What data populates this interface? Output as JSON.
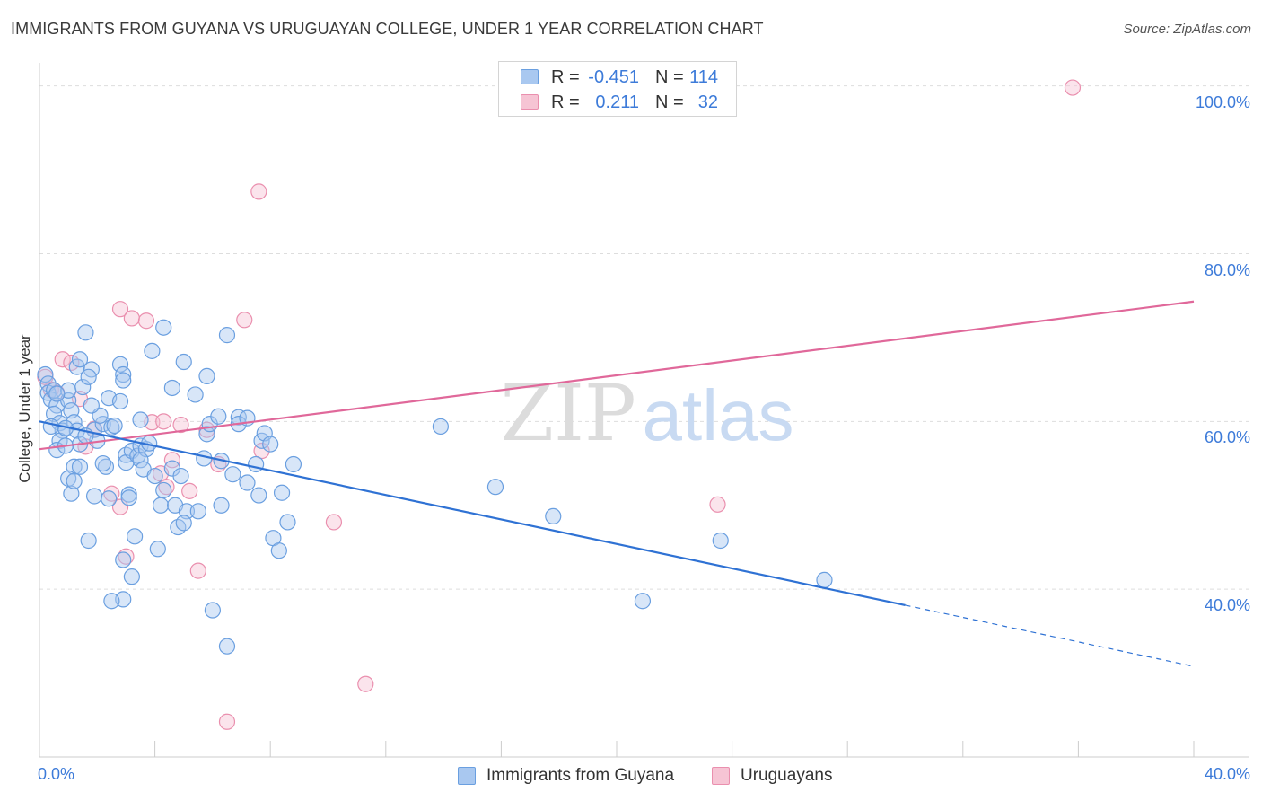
{
  "title": "IMMIGRANTS FROM GUYANA VS URUGUAYAN COLLEGE, UNDER 1 YEAR CORRELATION CHART",
  "source": "Source: ZipAtlas.com",
  "watermark": {
    "zip": "ZIP",
    "atlas": "atlas"
  },
  "stats": {
    "guyana": {
      "r_label": "R =",
      "r_value": "-0.451",
      "n_label": "N =",
      "n_value": "114"
    },
    "uruguay": {
      "r_label": "R =",
      "r_value": "0.211",
      "n_label": "N =",
      "n_value": "32"
    }
  },
  "legend": {
    "guyana": "Immigrants from Guyana",
    "uruguay": "Uruguayans"
  },
  "colors": {
    "blue_fill": "#a9c8f0",
    "blue_stroke": "#6a9fe0",
    "blue_line": "#2f72d4",
    "pink_fill": "#f6c4d4",
    "pink_stroke": "#ea8fae",
    "pink_line": "#e0689a",
    "tick_text": "#3d7bd9",
    "grid": "#dddddd"
  },
  "chart_data": {
    "type": "scatter",
    "title": "IMMIGRANTS FROM GUYANA VS URUGUAYAN COLLEGE, UNDER 1 YEAR CORRELATION CHART",
    "xlabel": "",
    "ylabel": "College, Under 1 year",
    "xlim": [
      0,
      40
    ],
    "ylim": [
      20,
      102
    ],
    "x_tick_labels": [
      "0.0%",
      "40.0%"
    ],
    "y_ticks": [
      40,
      60,
      80,
      100
    ],
    "y_tick_labels": [
      "40.0%",
      "60.0%",
      "80.0%",
      "100.0%"
    ],
    "grid": true,
    "legend_position": "bottom-center",
    "series": [
      {
        "name": "Immigrants from Guyana",
        "key": "guyana",
        "trend": {
          "x0": 0,
          "y0": 60.0,
          "x1": 30,
          "y1": 38.1,
          "dash_to_x": 40,
          "dash_to_y": 30.8
        },
        "points": [
          [
            0.2,
            65.6
          ],
          [
            0.3,
            64.5
          ],
          [
            0.3,
            63.4
          ],
          [
            0.4,
            62.6
          ],
          [
            0.5,
            63.7
          ],
          [
            0.6,
            61.9
          ],
          [
            0.5,
            60.9
          ],
          [
            0.7,
            59.8
          ],
          [
            0.8,
            58.9
          ],
          [
            0.7,
            57.7
          ],
          [
            0.6,
            56.6
          ],
          [
            1.0,
            62.5
          ],
          [
            1.0,
            63.7
          ],
          [
            1.1,
            61.3
          ],
          [
            1.2,
            59.9
          ],
          [
            1.3,
            58.9
          ],
          [
            1.4,
            57.3
          ],
          [
            1.2,
            54.6
          ],
          [
            1.0,
            53.2
          ],
          [
            1.1,
            51.4
          ],
          [
            1.4,
            54.6
          ],
          [
            1.3,
            66.5
          ],
          [
            1.4,
            67.4
          ],
          [
            1.5,
            64.1
          ],
          [
            1.8,
            66.2
          ],
          [
            1.7,
            65.3
          ],
          [
            1.6,
            70.6
          ],
          [
            1.9,
            59.0
          ],
          [
            2.0,
            57.7
          ],
          [
            2.2,
            59.7
          ],
          [
            1.9,
            51.1
          ],
          [
            2.1,
            60.7
          ],
          [
            2.4,
            62.8
          ],
          [
            2.3,
            54.6
          ],
          [
            2.5,
            59.3
          ],
          [
            2.6,
            59.5
          ],
          [
            2.8,
            66.8
          ],
          [
            2.9,
            65.6
          ],
          [
            2.9,
            64.9
          ],
          [
            2.4,
            50.8
          ],
          [
            2.8,
            62.4
          ],
          [
            3.0,
            56.0
          ],
          [
            3.0,
            55.1
          ],
          [
            3.2,
            56.5
          ],
          [
            3.1,
            51.3
          ],
          [
            3.5,
            60.2
          ],
          [
            3.4,
            55.9
          ],
          [
            3.5,
            57.1
          ],
          [
            3.7,
            56.7
          ],
          [
            3.8,
            57.4
          ],
          [
            3.5,
            55.4
          ],
          [
            3.9,
            68.4
          ],
          [
            4.3,
            71.2
          ],
          [
            4.2,
            50.0
          ],
          [
            4.6,
            64.0
          ],
          [
            4.6,
            54.4
          ],
          [
            4.7,
            50.0
          ],
          [
            4.8,
            47.4
          ],
          [
            4.9,
            53.5
          ],
          [
            5.1,
            49.3
          ],
          [
            5.0,
            67.1
          ],
          [
            5.4,
            63.2
          ],
          [
            5.5,
            49.3
          ],
          [
            5.7,
            55.6
          ],
          [
            5.8,
            58.5
          ],
          [
            5.8,
            65.4
          ],
          [
            5.9,
            59.7
          ],
          [
            6.0,
            37.5
          ],
          [
            6.2,
            60.6
          ],
          [
            6.3,
            55.3
          ],
          [
            6.3,
            50.0
          ],
          [
            6.5,
            70.3
          ],
          [
            6.7,
            53.7
          ],
          [
            6.9,
            60.5
          ],
          [
            6.9,
            59.7
          ],
          [
            7.2,
            52.7
          ],
          [
            7.2,
            60.4
          ],
          [
            7.5,
            54.9
          ],
          [
            7.6,
            51.2
          ],
          [
            7.7,
            57.7
          ],
          [
            7.8,
            58.6
          ],
          [
            8.0,
            57.3
          ],
          [
            8.1,
            46.1
          ],
          [
            8.3,
            44.6
          ],
          [
            8.4,
            51.5
          ],
          [
            8.6,
            48.0
          ],
          [
            8.8,
            54.9
          ],
          [
            3.2,
            41.5
          ],
          [
            2.9,
            38.8
          ],
          [
            2.5,
            38.6
          ],
          [
            2.9,
            43.5
          ],
          [
            1.7,
            45.8
          ],
          [
            3.1,
            50.9
          ],
          [
            4.1,
            44.8
          ],
          [
            5.0,
            47.9
          ],
          [
            6.5,
            33.2
          ],
          [
            13.9,
            59.4
          ],
          [
            15.8,
            52.2
          ],
          [
            17.8,
            48.7
          ],
          [
            20.9,
            38.6
          ],
          [
            23.6,
            45.8
          ],
          [
            27.2,
            41.1
          ],
          [
            0.9,
            59.2
          ],
          [
            1.6,
            58.3
          ],
          [
            2.2,
            55.0
          ],
          [
            3.6,
            54.3
          ],
          [
            4.3,
            51.8
          ],
          [
            0.4,
            59.4
          ],
          [
            1.2,
            52.9
          ],
          [
            0.6,
            63.3
          ],
          [
            0.9,
            57.1
          ],
          [
            1.8,
            61.9
          ],
          [
            3.3,
            46.3
          ],
          [
            4.0,
            53.5
          ]
        ]
      },
      {
        "name": "Uruguayans",
        "key": "uruguay",
        "trend": {
          "x0": 0,
          "y0": 56.7,
          "x1": 40,
          "y1": 74.3
        },
        "points": [
          [
            0.2,
            65.3
          ],
          [
            0.4,
            63.8
          ],
          [
            0.8,
            67.4
          ],
          [
            1.1,
            67.0
          ],
          [
            0.6,
            63.4
          ],
          [
            1.4,
            62.7
          ],
          [
            1.9,
            59.1
          ],
          [
            1.6,
            57.0
          ],
          [
            2.5,
            51.4
          ],
          [
            2.8,
            49.8
          ],
          [
            3.0,
            43.9
          ],
          [
            2.8,
            73.4
          ],
          [
            3.2,
            72.3
          ],
          [
            3.7,
            72.0
          ],
          [
            3.9,
            59.9
          ],
          [
            4.2,
            53.8
          ],
          [
            4.4,
            52.2
          ],
          [
            4.6,
            55.4
          ],
          [
            4.9,
            59.6
          ],
          [
            5.2,
            51.7
          ],
          [
            5.5,
            42.2
          ],
          [
            5.8,
            59.0
          ],
          [
            6.2,
            54.9
          ],
          [
            6.5,
            24.2
          ],
          [
            7.1,
            72.1
          ],
          [
            7.6,
            87.4
          ],
          [
            7.7,
            56.5
          ],
          [
            10.2,
            48.0
          ],
          [
            11.3,
            28.7
          ],
          [
            23.5,
            50.1
          ],
          [
            35.8,
            99.8
          ],
          [
            4.3,
            60.0
          ]
        ]
      }
    ]
  }
}
